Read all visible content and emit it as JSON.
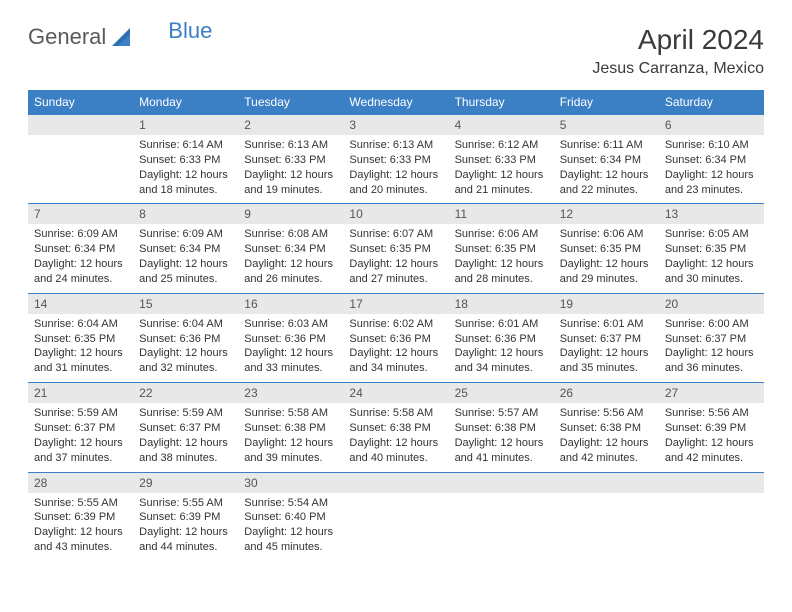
{
  "logo": {
    "text1": "General",
    "text2": "Blue"
  },
  "header": {
    "title": "April 2024",
    "location": "Jesus Carranza, Mexico"
  },
  "colors": {
    "header_bg": "#3b7fc4",
    "header_text": "#ffffff",
    "daynum_bg": "#e8e8e8",
    "top_border": "#3b7fc4",
    "body_text": "#333333",
    "page_bg": "#ffffff"
  },
  "daysOfWeek": [
    "Sunday",
    "Monday",
    "Tuesday",
    "Wednesday",
    "Thursday",
    "Friday",
    "Saturday"
  ],
  "weeks": [
    [
      null,
      {
        "num": "1",
        "sunrise": "Sunrise: 6:14 AM",
        "sunset": "Sunset: 6:33 PM",
        "daylight": "Daylight: 12 hours and 18 minutes."
      },
      {
        "num": "2",
        "sunrise": "Sunrise: 6:13 AM",
        "sunset": "Sunset: 6:33 PM",
        "daylight": "Daylight: 12 hours and 19 minutes."
      },
      {
        "num": "3",
        "sunrise": "Sunrise: 6:13 AM",
        "sunset": "Sunset: 6:33 PM",
        "daylight": "Daylight: 12 hours and 20 minutes."
      },
      {
        "num": "4",
        "sunrise": "Sunrise: 6:12 AM",
        "sunset": "Sunset: 6:33 PM",
        "daylight": "Daylight: 12 hours and 21 minutes."
      },
      {
        "num": "5",
        "sunrise": "Sunrise: 6:11 AM",
        "sunset": "Sunset: 6:34 PM",
        "daylight": "Daylight: 12 hours and 22 minutes."
      },
      {
        "num": "6",
        "sunrise": "Sunrise: 6:10 AM",
        "sunset": "Sunset: 6:34 PM",
        "daylight": "Daylight: 12 hours and 23 minutes."
      }
    ],
    [
      {
        "num": "7",
        "sunrise": "Sunrise: 6:09 AM",
        "sunset": "Sunset: 6:34 PM",
        "daylight": "Daylight: 12 hours and 24 minutes."
      },
      {
        "num": "8",
        "sunrise": "Sunrise: 6:09 AM",
        "sunset": "Sunset: 6:34 PM",
        "daylight": "Daylight: 12 hours and 25 minutes."
      },
      {
        "num": "9",
        "sunrise": "Sunrise: 6:08 AM",
        "sunset": "Sunset: 6:34 PM",
        "daylight": "Daylight: 12 hours and 26 minutes."
      },
      {
        "num": "10",
        "sunrise": "Sunrise: 6:07 AM",
        "sunset": "Sunset: 6:35 PM",
        "daylight": "Daylight: 12 hours and 27 minutes."
      },
      {
        "num": "11",
        "sunrise": "Sunrise: 6:06 AM",
        "sunset": "Sunset: 6:35 PM",
        "daylight": "Daylight: 12 hours and 28 minutes."
      },
      {
        "num": "12",
        "sunrise": "Sunrise: 6:06 AM",
        "sunset": "Sunset: 6:35 PM",
        "daylight": "Daylight: 12 hours and 29 minutes."
      },
      {
        "num": "13",
        "sunrise": "Sunrise: 6:05 AM",
        "sunset": "Sunset: 6:35 PM",
        "daylight": "Daylight: 12 hours and 30 minutes."
      }
    ],
    [
      {
        "num": "14",
        "sunrise": "Sunrise: 6:04 AM",
        "sunset": "Sunset: 6:35 PM",
        "daylight": "Daylight: 12 hours and 31 minutes."
      },
      {
        "num": "15",
        "sunrise": "Sunrise: 6:04 AM",
        "sunset": "Sunset: 6:36 PM",
        "daylight": "Daylight: 12 hours and 32 minutes."
      },
      {
        "num": "16",
        "sunrise": "Sunrise: 6:03 AM",
        "sunset": "Sunset: 6:36 PM",
        "daylight": "Daylight: 12 hours and 33 minutes."
      },
      {
        "num": "17",
        "sunrise": "Sunrise: 6:02 AM",
        "sunset": "Sunset: 6:36 PM",
        "daylight": "Daylight: 12 hours and 34 minutes."
      },
      {
        "num": "18",
        "sunrise": "Sunrise: 6:01 AM",
        "sunset": "Sunset: 6:36 PM",
        "daylight": "Daylight: 12 hours and 34 minutes."
      },
      {
        "num": "19",
        "sunrise": "Sunrise: 6:01 AM",
        "sunset": "Sunset: 6:37 PM",
        "daylight": "Daylight: 12 hours and 35 minutes."
      },
      {
        "num": "20",
        "sunrise": "Sunrise: 6:00 AM",
        "sunset": "Sunset: 6:37 PM",
        "daylight": "Daylight: 12 hours and 36 minutes."
      }
    ],
    [
      {
        "num": "21",
        "sunrise": "Sunrise: 5:59 AM",
        "sunset": "Sunset: 6:37 PM",
        "daylight": "Daylight: 12 hours and 37 minutes."
      },
      {
        "num": "22",
        "sunrise": "Sunrise: 5:59 AM",
        "sunset": "Sunset: 6:37 PM",
        "daylight": "Daylight: 12 hours and 38 minutes."
      },
      {
        "num": "23",
        "sunrise": "Sunrise: 5:58 AM",
        "sunset": "Sunset: 6:38 PM",
        "daylight": "Daylight: 12 hours and 39 minutes."
      },
      {
        "num": "24",
        "sunrise": "Sunrise: 5:58 AM",
        "sunset": "Sunset: 6:38 PM",
        "daylight": "Daylight: 12 hours and 40 minutes."
      },
      {
        "num": "25",
        "sunrise": "Sunrise: 5:57 AM",
        "sunset": "Sunset: 6:38 PM",
        "daylight": "Daylight: 12 hours and 41 minutes."
      },
      {
        "num": "26",
        "sunrise": "Sunrise: 5:56 AM",
        "sunset": "Sunset: 6:38 PM",
        "daylight": "Daylight: 12 hours and 42 minutes."
      },
      {
        "num": "27",
        "sunrise": "Sunrise: 5:56 AM",
        "sunset": "Sunset: 6:39 PM",
        "daylight": "Daylight: 12 hours and 42 minutes."
      }
    ],
    [
      {
        "num": "28",
        "sunrise": "Sunrise: 5:55 AM",
        "sunset": "Sunset: 6:39 PM",
        "daylight": "Daylight: 12 hours and 43 minutes."
      },
      {
        "num": "29",
        "sunrise": "Sunrise: 5:55 AM",
        "sunset": "Sunset: 6:39 PM",
        "daylight": "Daylight: 12 hours and 44 minutes."
      },
      {
        "num": "30",
        "sunrise": "Sunrise: 5:54 AM",
        "sunset": "Sunset: 6:40 PM",
        "daylight": "Daylight: 12 hours and 45 minutes."
      },
      null,
      null,
      null,
      null
    ]
  ]
}
